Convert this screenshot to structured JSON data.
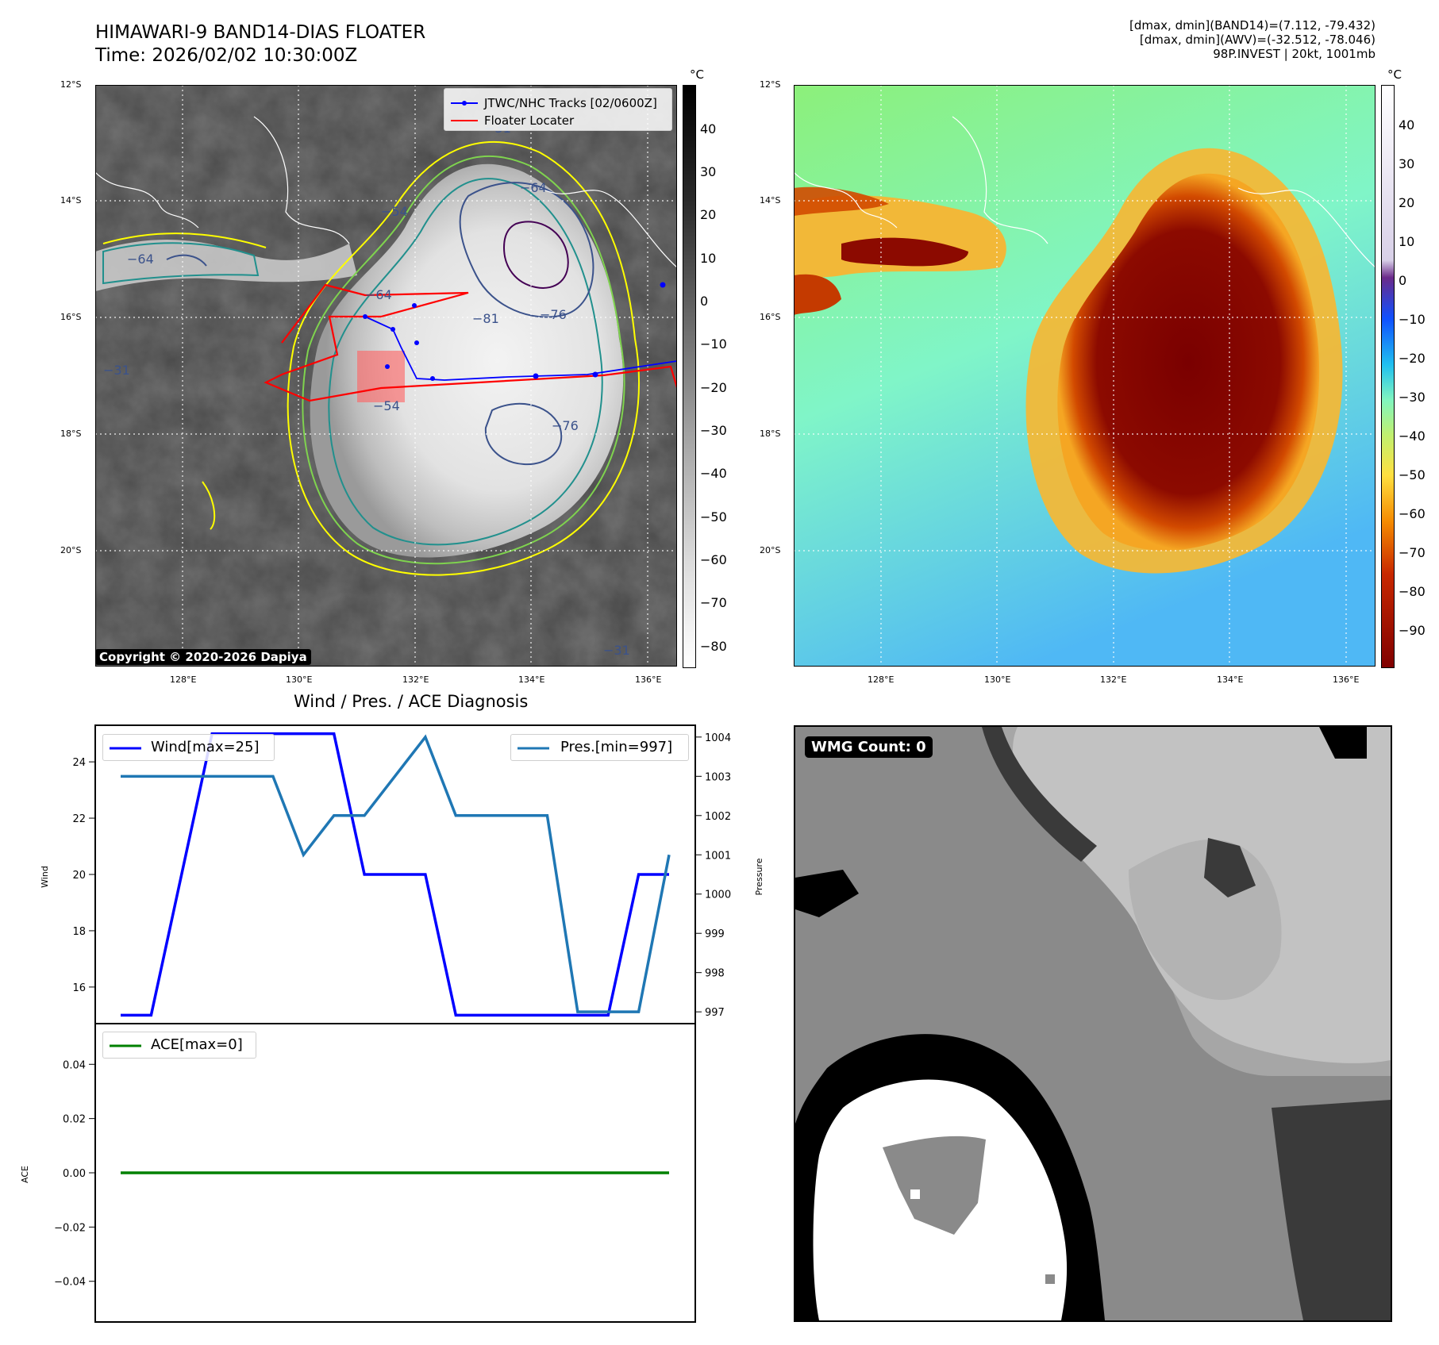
{
  "header": {
    "title_line1": "HIMAWARI-9 BAND14-DIAS FLOATER",
    "title_line2": "Time: 2026/02/02 10:30:00Z",
    "info_line1": "[dmax, dmin](BAND14)=(7.112, -79.432)",
    "info_line2": "[dmax, dmin](AWV)=(-32.512, -78.046)",
    "info_line3": "98P.INVEST | 20kt, 1001mb"
  },
  "map_common": {
    "lat_labels": [
      "12°S",
      "14°S",
      "16°S",
      "18°S",
      "20°S"
    ],
    "lon_labels": [
      "128°E",
      "130°E",
      "132°E",
      "134°E",
      "136°E"
    ]
  },
  "map_band14": {
    "cbar_unit": "°C",
    "cbar_ticks": [
      "40",
      "30",
      "20",
      "10",
      "0",
      "−10",
      "−20",
      "−30",
      "−40",
      "−50",
      "−60",
      "−70",
      "−80"
    ],
    "contour_labels": [
      "−31",
      "−54",
      "−64",
      "−76",
      "−81",
      "−31",
      "−76",
      "−64",
      "−31",
      "−54",
      "−64"
    ],
    "legend": {
      "tracks_label": "JTWC/NHC Tracks [02/0600Z]",
      "locater_label": "Floater Locater"
    },
    "colors": {
      "track": "#0000ff",
      "locater": "#ff0000",
      "contour_31": "#ffff00",
      "contour_54": "#7fd34e",
      "contour_64": "#21908d",
      "contour_76": "#3b528b",
      "contour_81": "#440154"
    },
    "copyright": "Copyright © 2020-2026 Dapiya"
  },
  "map_awv": {
    "cbar_unit": "°C",
    "cbar_ticks": [
      "40",
      "30",
      "20",
      "10",
      "0",
      "−10",
      "−20",
      "−30",
      "−40",
      "−50",
      "−60",
      "−70",
      "−80",
      "−90"
    ]
  },
  "diagnosis": {
    "title": "Wind / Pres. / ACE Diagnosis",
    "wind_legend": "Wind[max=25]",
    "pres_legend": "Pres.[min=997]",
    "ace_legend": "ACE[max=0]",
    "wind_ylabel": "Wind",
    "pres_ylabel": "Pressure",
    "ace_ylabel": "ACE",
    "wind_ticks": [
      "24",
      "22",
      "20",
      "18",
      "16"
    ],
    "pres_ticks": [
      "1004",
      "1003",
      "1002",
      "1001",
      "1000",
      "999",
      "998",
      "997"
    ],
    "ace_ticks": [
      "0.04",
      "0.02",
      "0.00",
      "−0.02",
      "−0.04"
    ],
    "colors": {
      "wind": "#0000ff",
      "pres": "#1f77b4",
      "ace": "#008000"
    }
  },
  "chart_data": [
    {
      "type": "line",
      "title": "Wind / Pres. / ACE Diagnosis",
      "x": [
        0,
        1,
        2,
        3,
        4,
        5,
        6,
        7,
        8,
        9,
        10,
        11,
        12,
        13,
        14,
        15,
        16,
        17,
        18
      ],
      "series": [
        {
          "name": "Wind[max=25]",
          "axis": "left",
          "values": [
            15,
            15,
            20,
            25,
            25,
            25,
            25,
            25,
            20,
            20,
            20,
            15,
            15,
            15,
            15,
            15,
            15,
            20,
            20
          ]
        },
        {
          "name": "Pres.[min=997]",
          "axis": "right",
          "values": [
            1003,
            1003,
            1003,
            1003,
            1003,
            1003,
            1001,
            1002,
            1002,
            1003,
            1004,
            1002,
            1002,
            1002,
            1002,
            997,
            997,
            997,
            1001
          ]
        }
      ],
      "ylabel": "Wind",
      "ylabel_right": "Pressure",
      "ylim": [
        14.7,
        25.3
      ],
      "ylim_right": [
        996.7,
        1004.3
      ]
    },
    {
      "type": "line",
      "x": [
        0,
        1,
        2,
        3,
        4,
        5,
        6,
        7,
        8,
        9,
        10,
        11,
        12,
        13,
        14,
        15,
        16,
        17,
        18
      ],
      "series": [
        {
          "name": "ACE[max=0]",
          "values": [
            0,
            0,
            0,
            0,
            0,
            0,
            0,
            0,
            0,
            0,
            0,
            0,
            0,
            0,
            0,
            0,
            0,
            0,
            0
          ]
        }
      ],
      "ylabel": "ACE",
      "ylim": [
        -0.055,
        0.055
      ]
    }
  ],
  "wmg_panel": {
    "label": "WMG Count: 0"
  }
}
